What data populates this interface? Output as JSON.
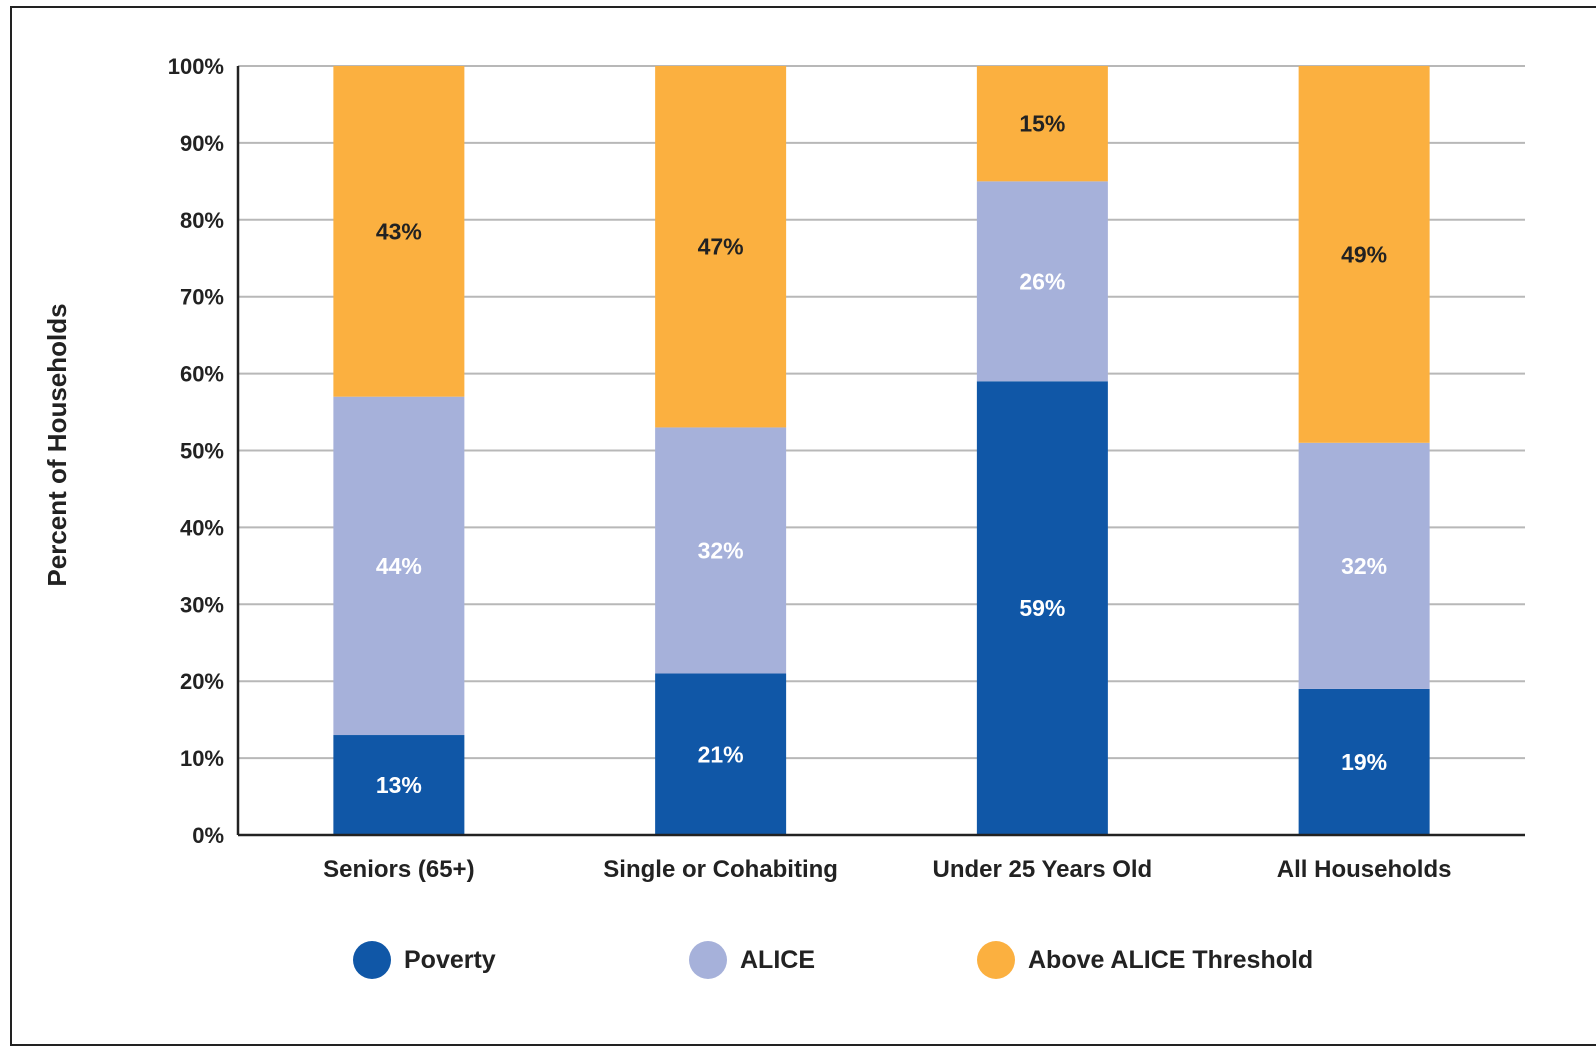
{
  "chart_data": {
    "type": "bar",
    "stacked": true,
    "ylabel": "Percent of Households",
    "xlabel": "",
    "ylim": [
      0,
      100
    ],
    "yticks": [
      "0%",
      "10%",
      "20%",
      "30%",
      "40%",
      "50%",
      "60%",
      "70%",
      "80%",
      "90%",
      "100%"
    ],
    "grid": true,
    "legend_position": "bottom",
    "categories": [
      "Seniors (65+)",
      "Single or Cohabiting",
      "Under 25 Years Old",
      "All Households"
    ],
    "series": [
      {
        "name": "Poverty",
        "color": "#1057a7",
        "label_color": "#ffffff",
        "values": [
          13,
          21,
          59,
          19
        ],
        "labels": [
          "13%",
          "21%",
          "59%",
          "19%"
        ]
      },
      {
        "name": "ALICE",
        "color": "#a6b1da",
        "label_color": "#ffffff",
        "values": [
          44,
          32,
          26,
          32
        ],
        "labels": [
          "44%",
          "32%",
          "26%",
          "32%"
        ]
      },
      {
        "name": "Above ALICE Threshold",
        "color": "#fbb040",
        "label_color": "#222222",
        "values": [
          43,
          47,
          15,
          49
        ],
        "labels": [
          "43%",
          "47%",
          "15%",
          "49%"
        ]
      }
    ]
  }
}
